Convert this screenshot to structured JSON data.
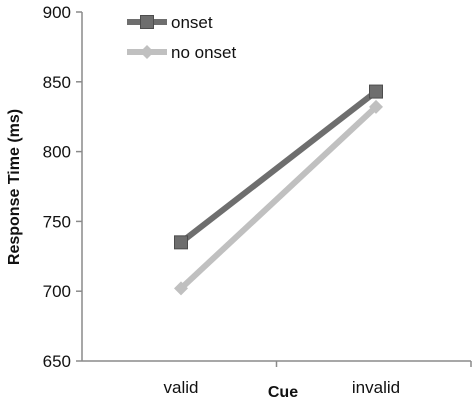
{
  "chart_data": {
    "type": "line",
    "title": "",
    "xlabel": "Cue",
    "ylabel": "Response Time (ms)",
    "categories": [
      "valid",
      "invalid"
    ],
    "ylim": [
      650,
      900
    ],
    "yticks": [
      650,
      700,
      750,
      800,
      850,
      900
    ],
    "yticks_text": [
      "650",
      "700",
      "750",
      "800",
      "850",
      "900"
    ],
    "grid": false,
    "legend_position": "top-left",
    "series": [
      {
        "name": "onset",
        "values": [
          735,
          843
        ],
        "color": "#6e6e6e",
        "marker": "square"
      },
      {
        "name": "no onset",
        "values": [
          702,
          832
        ],
        "color": "#c0c0c0",
        "marker": "diamond"
      }
    ]
  }
}
